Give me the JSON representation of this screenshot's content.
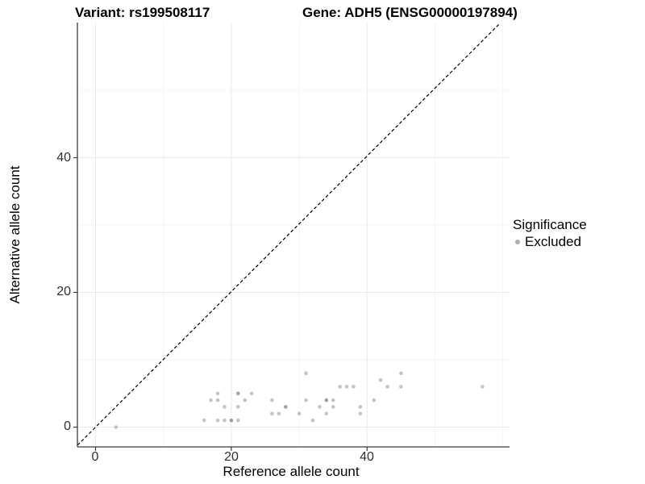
{
  "titles": {
    "variant": "Variant: rs199508117",
    "gene": "Gene: ADH5 (ENSG00000197894)"
  },
  "axes": {
    "x": {
      "title": "Reference allele count",
      "tick_labels": [
        "0",
        "20",
        "40"
      ]
    },
    "y": {
      "title": "Alternative allele count",
      "tick_labels": [
        "0",
        "20",
        "40"
      ]
    }
  },
  "legend": {
    "title": "Significance",
    "items": [
      {
        "label": "Excluded",
        "color": "#adadad"
      }
    ]
  },
  "colors": {
    "background": "#ffffff",
    "grid_major": "#e9e9e9",
    "grid_minor": "#f4f4f4",
    "axis_line": "#3c3c3c",
    "tick_mark": "#3c3c3c",
    "point_fill": "rgba(125,125,125,0.45)",
    "identity_line": "#000000",
    "legend_key": "#adadad"
  },
  "chart_data": {
    "type": "scatter",
    "title": "Variant: rs199508117 | Gene: ADH5 (ENSG00000197894)",
    "xlabel": "Reference allele count",
    "ylabel": "Alternative allele count",
    "xlim": [
      -2.7,
      61
    ],
    "ylim": [
      -3,
      60
    ],
    "x_major_ticks": [
      0,
      20,
      40
    ],
    "x_minor_gridlines": [
      10,
      30,
      50,
      60
    ],
    "y_major_ticks": [
      0,
      20,
      40
    ],
    "y_minor_gridlines": [
      10,
      30,
      50
    ],
    "grid": "on",
    "legend_position": "right",
    "identity_line": {
      "equation": "y = x",
      "style": "dashed",
      "color": "#000000"
    },
    "series": [
      {
        "name": "Excluded",
        "color": "rgba(125,125,125,0.45)",
        "points": [
          [
            3,
            0
          ],
          [
            16,
            1
          ],
          [
            18,
            1
          ],
          [
            19,
            1
          ],
          [
            20,
            1
          ],
          [
            20,
            1
          ],
          [
            21,
            1
          ],
          [
            32,
            1
          ],
          [
            26,
            2
          ],
          [
            27,
            2
          ],
          [
            30,
            2
          ],
          [
            34,
            2
          ],
          [
            39,
            2
          ],
          [
            19,
            3
          ],
          [
            21,
            3
          ],
          [
            28,
            3
          ],
          [
            28,
            3
          ],
          [
            33,
            3
          ],
          [
            35,
            3
          ],
          [
            39,
            3
          ],
          [
            17,
            4
          ],
          [
            18,
            4
          ],
          [
            22,
            4
          ],
          [
            26,
            4
          ],
          [
            31,
            4
          ],
          [
            34,
            4
          ],
          [
            34,
            4
          ],
          [
            35,
            4
          ],
          [
            41,
            4
          ],
          [
            18,
            5
          ],
          [
            21,
            5
          ],
          [
            21,
            5
          ],
          [
            23,
            5
          ],
          [
            36,
            6
          ],
          [
            37,
            6
          ],
          [
            38,
            6
          ],
          [
            43,
            6
          ],
          [
            45,
            6
          ],
          [
            57,
            6
          ],
          [
            42,
            7
          ],
          [
            31,
            8
          ],
          [
            45,
            8
          ]
        ]
      }
    ]
  }
}
